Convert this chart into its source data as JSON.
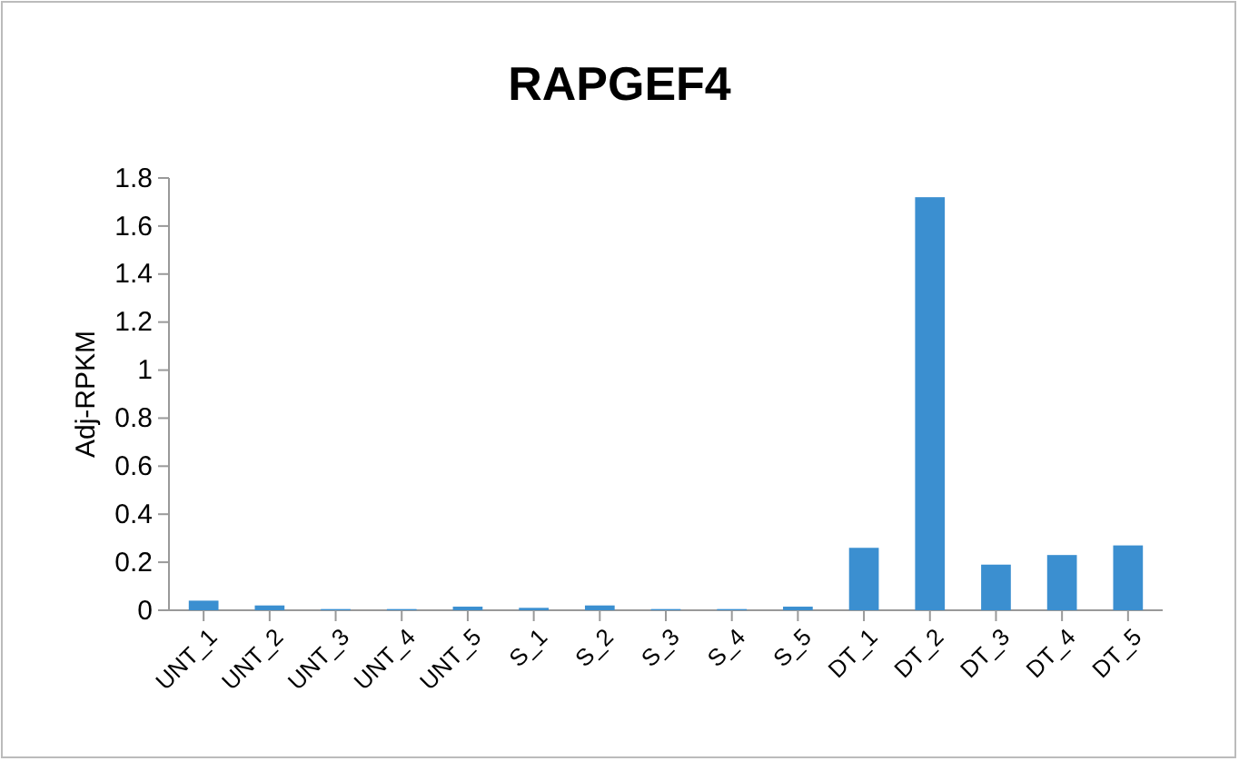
{
  "chart_data": {
    "type": "bar",
    "title": "RAPGEF4",
    "ylabel": "Adj-RPKM",
    "categories": [
      "UNT_1",
      "UNT_2",
      "UNT_3",
      "UNT_4",
      "UNT_5",
      "S_1",
      "S_2",
      "S_3",
      "S_4",
      "S_5",
      "DT_1",
      "DT_2",
      "DT_3",
      "DT_4",
      "DT_5"
    ],
    "values": [
      0.04,
      0.02,
      0.005,
      0.005,
      0.015,
      0.01,
      0.02,
      0.005,
      0.005,
      0.015,
      0.26,
      1.72,
      0.19,
      0.23,
      0.27
    ],
    "color": "#3b8fd0",
    "ylim": [
      0,
      1.8
    ],
    "yticks": [
      0,
      0.2,
      0.4,
      0.6,
      0.8,
      1,
      1.2,
      1.4,
      1.6,
      1.8
    ],
    "grid": false
  }
}
